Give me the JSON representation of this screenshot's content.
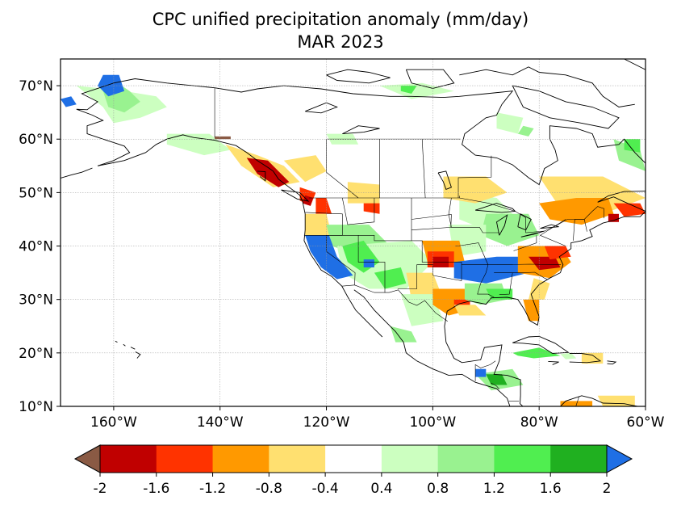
{
  "map": {
    "title": "CPC unified precipitation anomaly (mm/day)",
    "subtitle": "MAR 2023",
    "lon_ticks": [
      "160°W",
      "140°W",
      "120°W",
      "100°W",
      "80°W",
      "60°W"
    ],
    "lat_ticks": [
      "70°N",
      "60°N",
      "50°N",
      "40°N",
      "30°N",
      "20°N",
      "10°N"
    ],
    "lon_range": [
      -170,
      -60
    ],
    "lat_range": [
      10,
      75
    ],
    "grid": true
  },
  "colorbar": {
    "tick_labels": [
      "-2",
      "-1.6",
      "-1.2",
      "-0.8",
      "-0.4",
      "0.4",
      "0.8",
      "1.2",
      "1.6",
      "2"
    ],
    "under_color": "#8a5a44",
    "over_color": "#1f6fe5",
    "colors": [
      "#c00000",
      "#ff3300",
      "#ff9900",
      "#ffe070",
      "#ffffff",
      "#ccffc0",
      "#99f290",
      "#50ee50",
      "#20b020"
    ]
  }
}
